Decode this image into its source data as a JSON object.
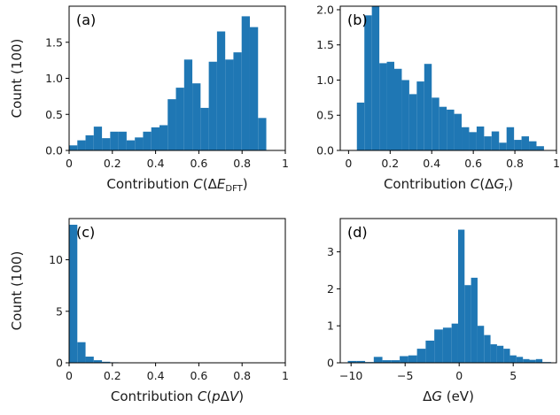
{
  "chart_data": [
    {
      "type": "bar",
      "panel_label": "(a)",
      "xlabel": "Contribution C(ΔE_DFT)",
      "xlabel_parts": [
        "Contribution ",
        "C",
        "(Δ",
        "E",
        "DFT",
        ")"
      ],
      "ylabel": "Count (100)",
      "xlim": [
        0,
        1
      ],
      "ylim": [
        0,
        2.0
      ],
      "xticks": [
        0,
        0.2,
        0.4,
        0.6,
        0.8,
        1
      ],
      "xtick_labels": [
        "0",
        "0.2",
        "0.4",
        "0.6",
        "0.8",
        "1"
      ],
      "yticks": [
        0,
        0.5,
        1.0,
        1.5
      ],
      "ytick_labels": [
        "0.0",
        "0.5",
        "1.0",
        "1.5"
      ],
      "bin_edges": [
        0.0,
        0.038,
        0.076,
        0.114,
        0.152,
        0.19,
        0.228,
        0.266,
        0.304,
        0.342,
        0.38,
        0.418,
        0.456,
        0.494,
        0.532,
        0.57,
        0.608,
        0.646,
        0.684,
        0.722,
        0.76,
        0.798,
        0.836,
        0.874,
        0.912,
        0.95
      ],
      "values": [
        0.07,
        0.14,
        0.21,
        0.33,
        0.17,
        0.26,
        0.26,
        0.14,
        0.18,
        0.26,
        0.32,
        0.35,
        0.71,
        0.87,
        1.26,
        0.93,
        0.59,
        1.23,
        1.65,
        1.26,
        1.36,
        1.86,
        1.71,
        0.45,
        0.0
      ],
      "color": "#1f77b4"
    },
    {
      "type": "bar",
      "panel_label": "(b)",
      "xlabel": "Contribution C(ΔG_r)",
      "xlabel_parts": [
        "Contribution ",
        "C",
        "(Δ",
        "G",
        "r",
        ")"
      ],
      "ylabel": "",
      "xlim": [
        -0.04,
        1
      ],
      "ylim": [
        0,
        2.05
      ],
      "xticks": [
        0,
        0.2,
        0.4,
        0.6,
        0.8,
        1
      ],
      "xtick_labels": [
        "0",
        "0.2",
        "0.4",
        "0.6",
        "0.8",
        "1"
      ],
      "yticks": [
        0,
        0.5,
        1.0,
        1.5,
        2.0
      ],
      "ytick_labels": [
        "0.0",
        "0.5",
        "1.0",
        "1.5",
        "2.0"
      ],
      "bin_edges": [
        0.04,
        0.076,
        0.112,
        0.148,
        0.184,
        0.22,
        0.256,
        0.292,
        0.328,
        0.364,
        0.4,
        0.436,
        0.472,
        0.508,
        0.544,
        0.58,
        0.616,
        0.652,
        0.688,
        0.724,
        0.76,
        0.796,
        0.832,
        0.868,
        0.904,
        0.94
      ],
      "values": [
        0.68,
        1.92,
        2.05,
        1.24,
        1.26,
        1.16,
        1.0,
        0.8,
        0.98,
        1.23,
        0.75,
        0.62,
        0.58,
        0.52,
        0.33,
        0.26,
        0.34,
        0.2,
        0.27,
        0.11,
        0.33,
        0.15,
        0.2,
        0.13,
        0.06
      ],
      "color": "#1f77b4"
    },
    {
      "type": "bar",
      "panel_label": "(c)",
      "xlabel": "Contribution C(pΔV)",
      "xlabel_parts": [
        "Contribution ",
        "C",
        "(",
        "p",
        "Δ",
        "V",
        ")"
      ],
      "ylabel": "Count (100)",
      "xlim": [
        0,
        1
      ],
      "ylim": [
        0,
        14.0
      ],
      "xticks": [
        0,
        0.2,
        0.4,
        0.6,
        0.8,
        1
      ],
      "xtick_labels": [
        "0",
        "0.2",
        "0.4",
        "0.6",
        "0.8",
        "1"
      ],
      "yticks": [
        0,
        5,
        10
      ],
      "ytick_labels": [
        "0",
        "5",
        "10"
      ],
      "bin_edges": [
        0.0,
        0.038,
        0.076,
        0.114,
        0.152,
        0.19,
        0.228,
        0.266,
        0.304,
        0.342,
        0.38,
        0.418,
        0.456,
        0.494,
        0.532,
        0.57,
        0.608,
        0.646,
        0.684,
        0.722,
        0.76,
        0.798,
        0.836,
        0.874,
        0.912,
        0.95
      ],
      "values": [
        13.4,
        2.0,
        0.6,
        0.25,
        0.1,
        0.05,
        0.03,
        0.02,
        0.02,
        0.02,
        0.01,
        0.01,
        0.01,
        0.01,
        0.0,
        0.0,
        0.0,
        0.0,
        0.0,
        0.0,
        0.0,
        0.0,
        0.0,
        0.0,
        0.0
      ],
      "color": "#1f77b4"
    },
    {
      "type": "bar",
      "panel_label": "(d)",
      "xlabel": "ΔG (eV)",
      "xlabel_parts": [
        "Δ",
        "G",
        " (eV)"
      ],
      "ylabel": "",
      "xlim": [
        -11,
        9
      ],
      "ylim": [
        0,
        3.9
      ],
      "xticks": [
        -10,
        -5,
        0,
        5
      ],
      "xtick_labels": [
        "−10",
        "−5",
        "0",
        "5"
      ],
      "yticks": [
        0,
        1,
        2,
        3
      ],
      "ytick_labels": [
        "0",
        "1",
        "2",
        "3"
      ],
      "bin_edges": [
        -10.3,
        -9.5,
        -8.7,
        -7.9,
        -7.1,
        -6.3,
        -5.5,
        -4.7,
        -3.9,
        -3.1,
        -2.3,
        -1.5,
        -0.7,
        -0.1,
        0.5,
        1.1,
        1.7,
        2.3,
        2.9,
        3.5,
        4.1,
        4.7,
        5.3,
        5.9,
        6.5,
        7.1,
        7.7,
        8.5
      ],
      "values": [
        0.05,
        0.05,
        0.02,
        0.16,
        0.07,
        0.07,
        0.18,
        0.2,
        0.38,
        0.6,
        0.9,
        0.95,
        1.06,
        3.6,
        2.1,
        2.3,
        1.0,
        0.75,
        0.5,
        0.46,
        0.38,
        0.2,
        0.16,
        0.1,
        0.08,
        0.1,
        0.02
      ],
      "color": "#1f77b4"
    }
  ]
}
